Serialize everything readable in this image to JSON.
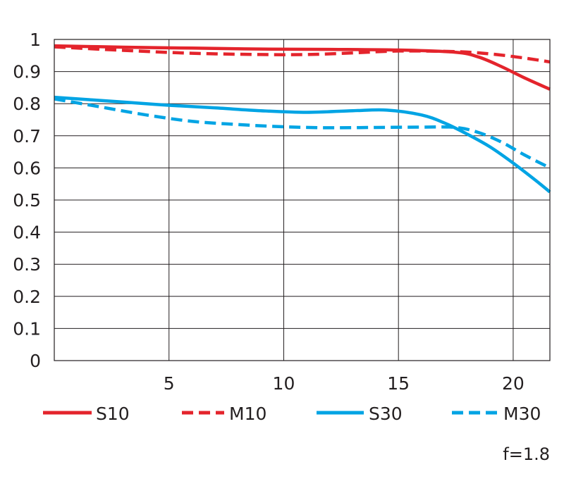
{
  "chart_data": {
    "type": "line",
    "title": "",
    "xlabel": "",
    "ylabel": "",
    "xlim": [
      0,
      21.6
    ],
    "ylim": [
      0,
      1
    ],
    "x_ticks": [
      5,
      10,
      15,
      20
    ],
    "y_ticks": [
      0,
      0.1,
      0.2,
      0.3,
      0.4,
      0.5,
      0.6,
      0.7,
      0.8,
      0.9,
      1
    ],
    "y_tick_labels": [
      "0",
      "0.1",
      "0.2",
      "0.3",
      "0.4",
      "0.5",
      "0.6",
      "0.7",
      "0.8",
      "0.9",
      "1"
    ],
    "grid": true,
    "legend_position": "bottom",
    "annotation": "f=1.8",
    "series": [
      {
        "name": "S10",
        "color": "#e4242c",
        "dash": false,
        "x": [
          0,
          3,
          6,
          9,
          12,
          15,
          17.5,
          18.5,
          19.5,
          20.5,
          21.6
        ],
        "y": [
          0.98,
          0.976,
          0.973,
          0.97,
          0.969,
          0.967,
          0.96,
          0.945,
          0.915,
          0.88,
          0.845
        ]
      },
      {
        "name": "M10",
        "color": "#e4242c",
        "dash": true,
        "x": [
          0,
          3,
          6,
          9,
          11,
          13,
          15,
          17.5,
          19,
          20.5,
          21.6
        ],
        "y": [
          0.977,
          0.966,
          0.957,
          0.953,
          0.953,
          0.958,
          0.964,
          0.962,
          0.955,
          0.942,
          0.93
        ]
      },
      {
        "name": "S30",
        "color": "#00a4e4",
        "dash": false,
        "x": [
          0,
          3,
          5,
          7,
          9,
          11,
          13,
          14.5,
          16,
          17,
          18,
          19,
          20,
          21,
          21.6
        ],
        "y": [
          0.82,
          0.805,
          0.795,
          0.787,
          0.778,
          0.773,
          0.778,
          0.78,
          0.765,
          0.74,
          0.705,
          0.665,
          0.615,
          0.56,
          0.525
        ]
      },
      {
        "name": "M30",
        "color": "#00a4e4",
        "dash": true,
        "x": [
          0,
          2,
          4,
          6,
          8,
          10,
          12,
          14,
          16,
          17.5,
          18.5,
          19.5,
          20.5,
          21.6
        ],
        "y": [
          0.815,
          0.79,
          0.765,
          0.745,
          0.735,
          0.728,
          0.725,
          0.726,
          0.727,
          0.726,
          0.71,
          0.68,
          0.64,
          0.6
        ]
      }
    ]
  }
}
